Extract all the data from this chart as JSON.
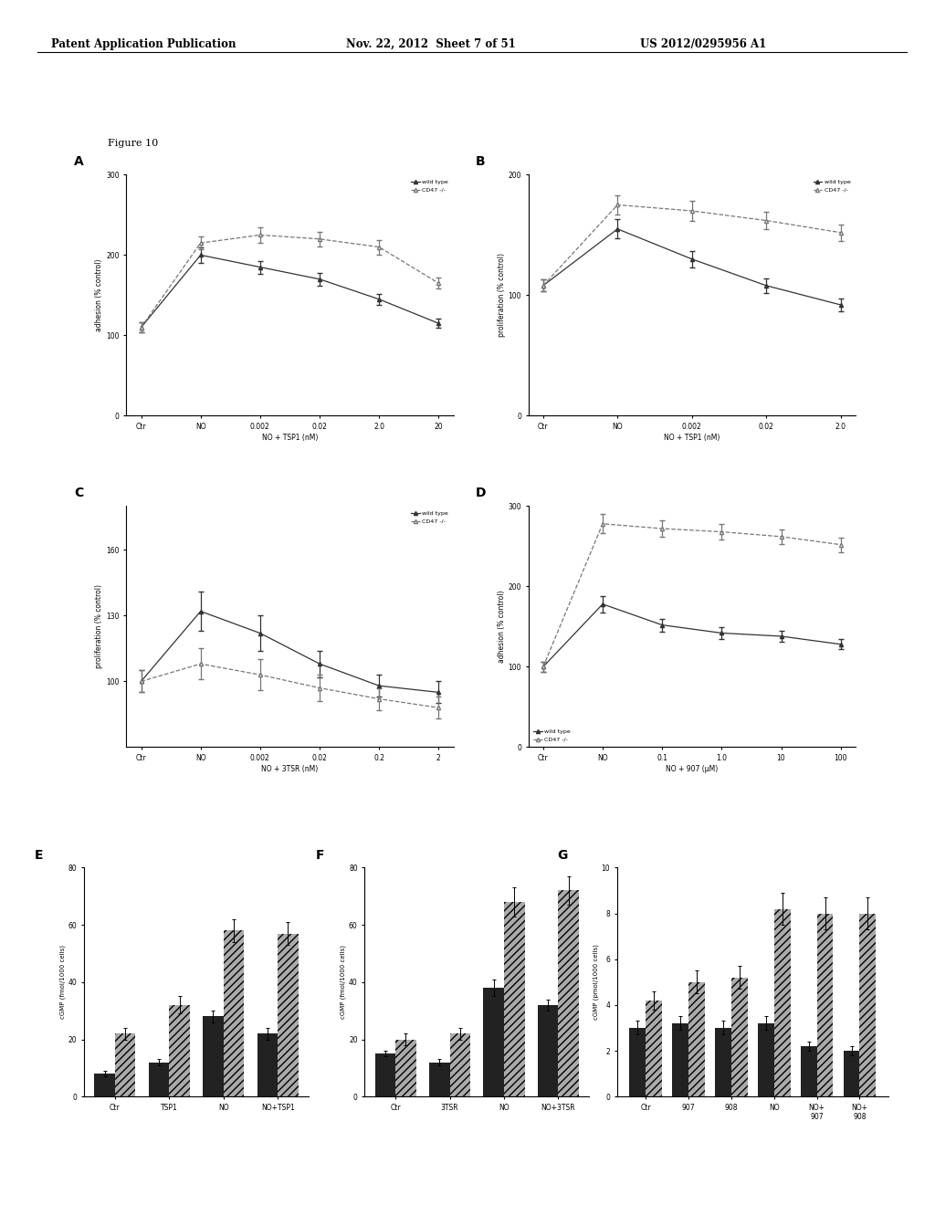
{
  "header_left": "Patent Application Publication",
  "header_mid": "Nov. 22, 2012  Sheet 7 of 51",
  "header_right": "US 2012/0295956 A1",
  "figure_label": "Figure 10",
  "panel_A": {
    "label": "A",
    "ylabel": "adhesion (% control)",
    "xlabel": "NO + TSP1 (nM)",
    "xtick_labels": [
      "Ctr",
      "NO",
      "0.002",
      "0.02",
      "2.0",
      "20"
    ],
    "ylim": [
      0,
      300
    ],
    "yticks": [
      0,
      100,
      200,
      300
    ],
    "wild_type": [
      110,
      200,
      185,
      170,
      145,
      115
    ],
    "wild_type_err": [
      6,
      10,
      8,
      8,
      7,
      6
    ],
    "cd47": [
      110,
      215,
      225,
      220,
      210,
      165
    ],
    "cd47_err": [
      6,
      8,
      10,
      9,
      9,
      7
    ]
  },
  "panel_B": {
    "label": "B",
    "ylabel": "proliferation (% control)",
    "xlabel": "NO + TSP1 (nM)",
    "xtick_labels": [
      "Ctr",
      "NO",
      "0.002",
      "0.02",
      "2.0"
    ],
    "ylim": [
      0,
      200
    ],
    "yticks": [
      0,
      100,
      200
    ],
    "wild_type": [
      108,
      155,
      130,
      108,
      92
    ],
    "wild_type_err": [
      5,
      8,
      7,
      6,
      5
    ],
    "cd47": [
      108,
      175,
      170,
      162,
      152
    ],
    "cd47_err": [
      5,
      8,
      8,
      7,
      7
    ]
  },
  "panel_C": {
    "label": "C",
    "ylabel": "proliferation (% control)",
    "xlabel": "NO + 3TSR (nM)",
    "xtick_labels": [
      "Ctr",
      "NO",
      "0.002",
      "0.02",
      "0.2",
      "2"
    ],
    "ylim": [
      70,
      180
    ],
    "yticks": [
      100,
      130,
      160
    ],
    "wild_type": [
      100,
      132,
      122,
      108,
      98,
      95
    ],
    "wild_type_err": [
      5,
      9,
      8,
      6,
      5,
      5
    ],
    "cd47": [
      100,
      108,
      103,
      97,
      92,
      88
    ],
    "cd47_err": [
      5,
      7,
      7,
      6,
      5,
      5
    ]
  },
  "panel_D": {
    "label": "D",
    "ylabel": "adhesion (% control)",
    "xlabel": "NO + 907 (μM)",
    "xtick_labels": [
      "Ctr",
      "NO",
      "0.1",
      "1.0",
      "10",
      "100"
    ],
    "ylim": [
      0,
      300
    ],
    "yticks": [
      0,
      100,
      200,
      300
    ],
    "wild_type": [
      100,
      178,
      152,
      142,
      138,
      128
    ],
    "wild_type_err": [
      6,
      10,
      8,
      7,
      7,
      6
    ],
    "cd47": [
      100,
      278,
      272,
      268,
      262,
      252
    ],
    "cd47_err": [
      6,
      12,
      10,
      10,
      9,
      9
    ]
  },
  "panel_E": {
    "label": "E",
    "ylabel": "cGMP (fmol/1000 cells)",
    "xlabel_cats": [
      "Ctr",
      "TSP1",
      "NO",
      "NO+TSP1"
    ],
    "wild_type": [
      8,
      12,
      28,
      22
    ],
    "wild_type_err": [
      1,
      1,
      2,
      2
    ],
    "cd47": [
      22,
      32,
      58,
      57
    ],
    "cd47_err": [
      2,
      3,
      4,
      4
    ],
    "ylim": [
      0,
      80
    ],
    "yticks": [
      0,
      20,
      40,
      60,
      80
    ]
  },
  "panel_F": {
    "label": "F",
    "ylabel": "cGMP (fmol/1000 cells)",
    "xlabel_cats": [
      "Ctr",
      "3TSR",
      "NO",
      "NO+3TSR"
    ],
    "wild_type": [
      15,
      12,
      38,
      32
    ],
    "wild_type_err": [
      1,
      1,
      3,
      2
    ],
    "cd47": [
      20,
      22,
      68,
      72
    ],
    "cd47_err": [
      2,
      2,
      5,
      5
    ],
    "ylim": [
      0,
      80
    ],
    "yticks": [
      0,
      20,
      40,
      60,
      80
    ]
  },
  "panel_G": {
    "label": "G",
    "ylabel": "cGMP (pmol/1000 cells)",
    "xlabel_cats": [
      "Ctr",
      "907",
      "908",
      "NO",
      "NO+\n907",
      "NO+\n908"
    ],
    "wild_type": [
      3,
      3.2,
      3,
      3.2,
      2.2,
      2.0
    ],
    "wild_type_err": [
      0.3,
      0.3,
      0.3,
      0.3,
      0.2,
      0.2
    ],
    "cd47": [
      4.2,
      5.0,
      5.2,
      8.2,
      8.0,
      8.0
    ],
    "cd47_err": [
      0.4,
      0.5,
      0.5,
      0.7,
      0.7,
      0.7
    ],
    "ylim": [
      0,
      10
    ],
    "yticks": [
      0,
      2,
      4,
      6,
      8,
      10
    ]
  },
  "bg_color": "#ffffff"
}
